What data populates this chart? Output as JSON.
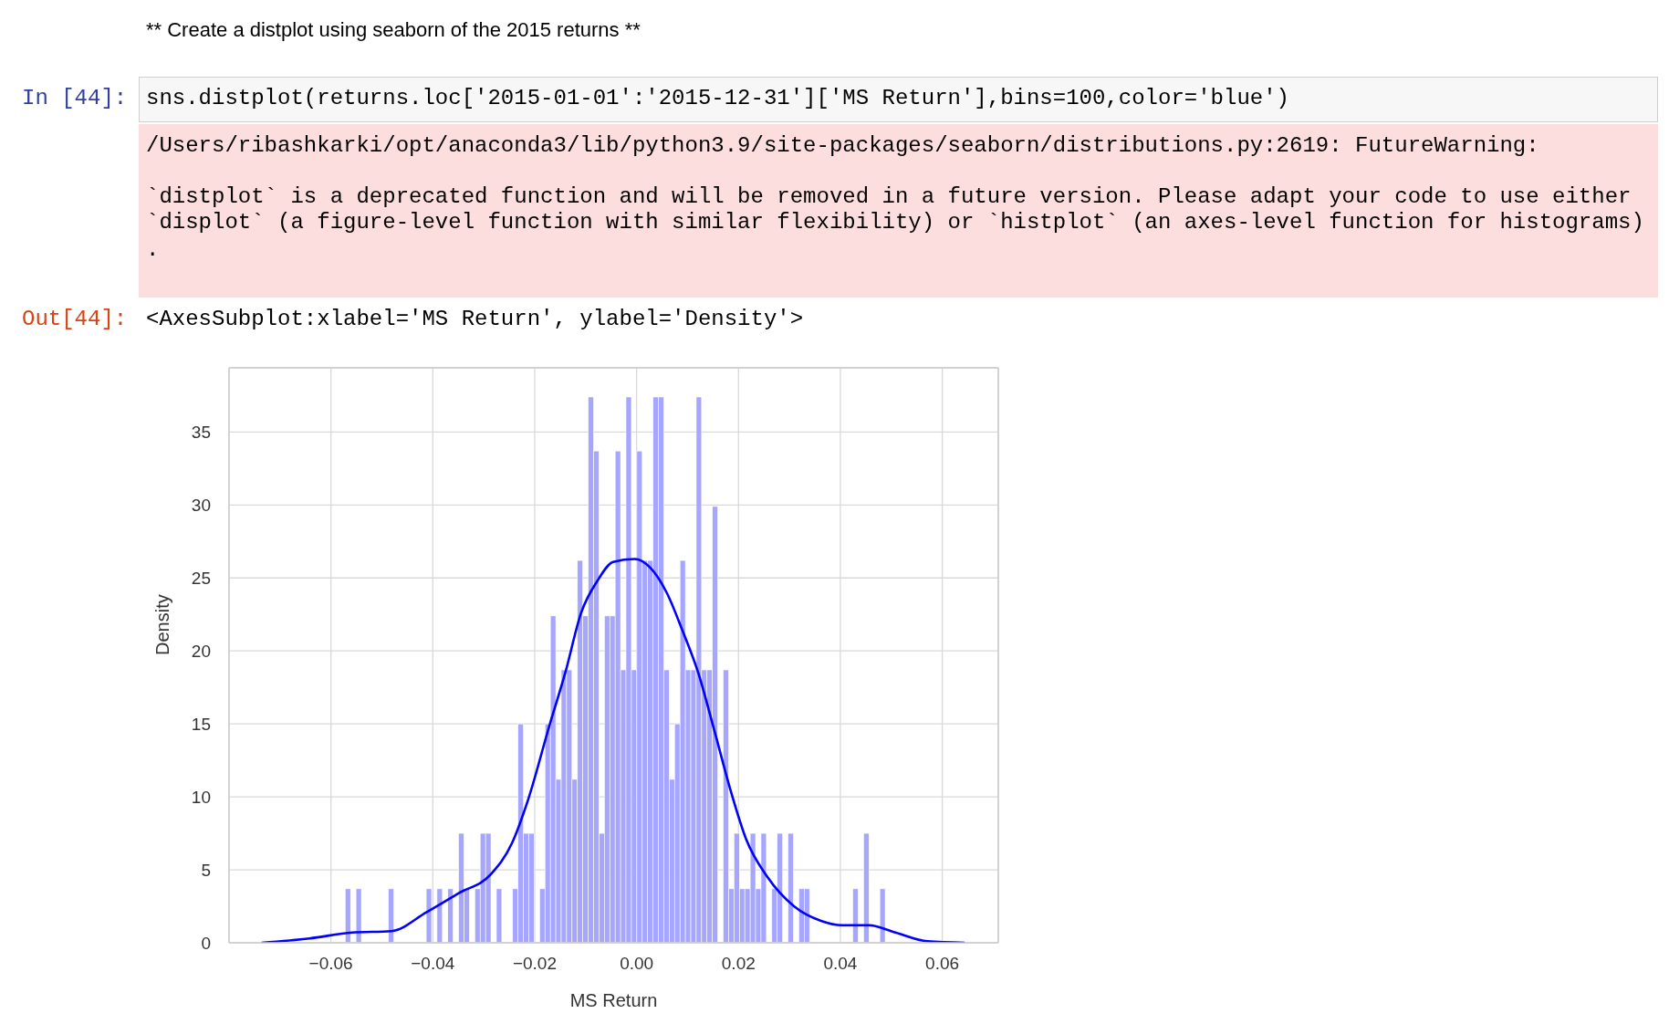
{
  "chart_data": {
    "type": "histogram",
    "annotations": [
      "** Create a distplot using seaborn of the 2015 returns **",
      "In [44]:",
      "sns.distplot(returns.loc['2015-01-01':'2015-12-31']['MS Return'],bins=100,color='blue')",
      "/Users/ribashkarki/opt/anaconda3/lib/python3.9/site-packages/seaborn/distributions.py:2619: FutureWarning:",
      "`distplot` is a deprecated function and will be removed in a future version. Please adapt your code to use either",
      "`displot` (a figure-level function with similar flexibility) or `histplot` (an axes-level function for histograms)",
      ".",
      "Out[44]:",
      "<AxesSubplot:xlabel='MS Return', ylabel='Density'>"
    ],
    "xlabel": "MS Return",
    "ylabel": "Density",
    "bins": [
      -0.0572,
      -0.05614,
      -0.05508,
      -0.05402,
      -0.05296,
      -0.0519,
      -0.05084,
      -0.04978,
      -0.04872,
      -0.04766,
      -0.0466,
      -0.04554,
      -0.04448,
      -0.04342,
      -0.04236,
      -0.0413,
      -0.04024,
      -0.03918,
      -0.03812,
      -0.03706,
      -0.036,
      -0.03494,
      -0.03388,
      -0.03282,
      -0.03176,
      -0.0307,
      -0.02964,
      -0.02858,
      -0.02752,
      -0.02646,
      -0.0254,
      -0.02434,
      -0.02328,
      -0.02222,
      -0.02116,
      -0.0201,
      -0.01904,
      -0.01798,
      -0.01692,
      -0.01586,
      -0.0148,
      -0.01374,
      -0.01268,
      -0.01162,
      -0.01056,
      -0.0095,
      -0.00844,
      -0.00738,
      -0.00632,
      -0.00526,
      -0.0042,
      -0.00314,
      -0.00208,
      -0.00102,
      4e-05,
      0.0011,
      0.00216,
      0.00322,
      0.00428,
      0.00534,
      0.0064,
      0.00746,
      0.00852,
      0.00958,
      0.01064,
      0.0117,
      0.01276,
      0.01382,
      0.01488,
      0.01594,
      0.017,
      0.01806,
      0.01912,
      0.02018,
      0.02124,
      0.0223,
      0.02336,
      0.02442,
      0.02548,
      0.02654,
      0.0276,
      0.02866,
      0.02972,
      0.03078,
      0.03184,
      0.0329,
      0.03396,
      0.03502,
      0.03608,
      0.03714,
      0.0382,
      0.03926,
      0.04032,
      0.04138,
      0.04244,
      0.0435,
      0.04456,
      0.04562,
      0.04668,
      0.04774,
      0.0488
    ],
    "values": [
      3.7,
      0,
      3.7,
      0,
      0,
      0,
      0,
      0,
      3.7,
      0,
      0,
      0,
      0,
      0,
      0,
      3.7,
      0,
      3.7,
      0,
      3.7,
      0,
      7.5,
      3.7,
      0,
      3.7,
      7.5,
      7.5,
      0,
      3.7,
      0,
      0,
      3.7,
      15,
      7.5,
      7.5,
      0,
      3.7,
      15,
      22.4,
      11.2,
      18.7,
      18.7,
      11.2,
      26.2,
      22.4,
      37.4,
      33.7,
      7.5,
      22.4,
      22.4,
      33.7,
      18.7,
      37.4,
      18.7,
      33.7,
      26.2,
      26.2,
      37.4,
      37.4,
      18.7,
      11.2,
      15,
      26.2,
      18.7,
      18.7,
      37.4,
      18.7,
      18.7,
      29.9,
      0,
      18.7,
      3.7,
      7.5,
      3.7,
      3.7,
      7.5,
      3.7,
      7.5,
      0,
      3.7,
      7.5,
      0,
      7.5,
      0,
      3.7,
      3.7,
      0,
      0,
      0,
      0,
      0,
      0,
      0,
      0,
      3.7,
      0,
      7.5,
      0,
      0,
      3.7
    ],
    "color": "#a6a6ff",
    "series": [
      {
        "type": "line",
        "color": "#0000ff",
        "x": [
          -0.0736,
          -0.0642,
          -0.0558,
          -0.0481,
          -0.0412,
          -0.0349,
          -0.0286,
          -0.0245,
          -0.0213,
          -0.0171,
          -0.014,
          -0.0109,
          -0.0077,
          -0.0046,
          -0.0004,
          0.0027,
          0.0059,
          0.009,
          0.0121,
          0.0153,
          0.0184,
          0.0215,
          0.0257,
          0.0309,
          0.0362,
          0.0403,
          0.0456,
          0.0508,
          0.0571,
          0.0644
        ],
        "values": [
          0,
          0.3,
          0.7,
          0.8,
          2.1,
          3.4,
          4.7,
          6.8,
          9.8,
          14.9,
          18.5,
          22.6,
          24.8,
          26.1,
          26.3,
          25.7,
          24,
          21.4,
          18.5,
          14.5,
          10.5,
          7.1,
          4.5,
          2.5,
          1.5,
          1.2,
          1.2,
          0.7,
          0.1,
          0
        ]
      }
    ],
    "xlim": [
      -0.08,
      0.071
    ],
    "ylim": [
      0,
      39.4
    ],
    "xticks": [
      {
        "value": -0.06,
        "label": "−0.06"
      },
      {
        "value": -0.04,
        "label": "−0.04"
      },
      {
        "value": -0.02,
        "label": "−0.02"
      },
      {
        "value": 0,
        "label": "0.00"
      },
      {
        "value": 0.02,
        "label": "0.02"
      },
      {
        "value": 0.04,
        "label": "0.04"
      },
      {
        "value": 0.06,
        "label": "0.06"
      }
    ],
    "yticks": [
      0,
      5,
      10,
      15,
      20,
      25,
      30,
      35
    ],
    "grid": true
  }
}
